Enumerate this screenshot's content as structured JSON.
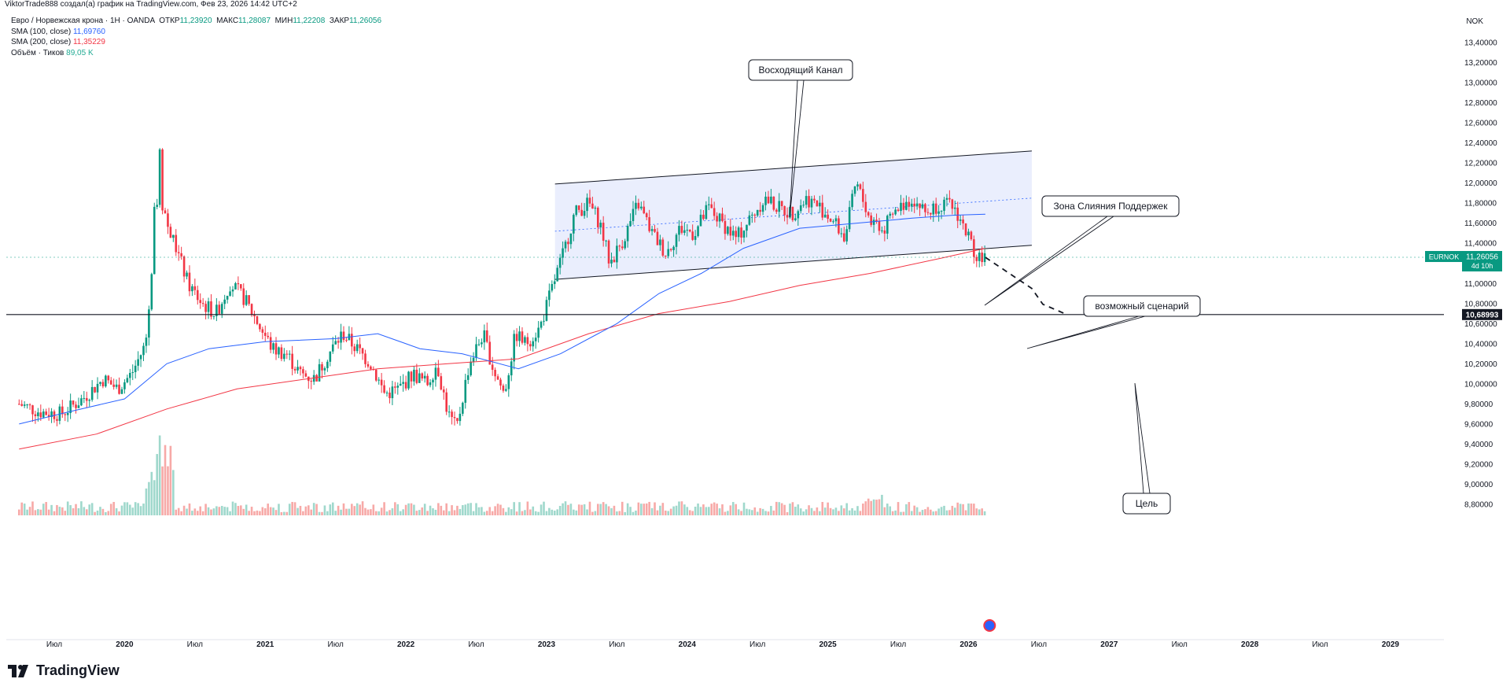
{
  "header": {
    "caption": "ViktorTrade888 создал(а) график на TradingView.com, Фев 23, 2026 14:42 UTC+2"
  },
  "legend": {
    "symbol": "Евро / Норвежская крона · 1Н · OANDA",
    "o_label": "ОТКР",
    "o_val": "11,23920",
    "h_label": "МАКС",
    "h_val": "11,28087",
    "l_label": "МИН",
    "l_val": "11,22208",
    "c_label": "ЗАКР",
    "c_val": "11,26056",
    "sma100_label": "SMA (100, close)",
    "sma100_val": "11,69760",
    "sma200_label": "SMA (200, close)",
    "sma200_val": "11,35229",
    "vol_label": "Объём · Тиков",
    "vol_val": "89,05 K"
  },
  "currency": "NOK",
  "colors": {
    "up": "#089981",
    "down": "#f23645",
    "sma100": "#2962ff",
    "sma200": "#f23645",
    "channel_fill": "#e3e8fc",
    "price_tag": "#089981"
  },
  "footer": {
    "brand": "TradingView"
  },
  "price_tag": {
    "symbol": "EURNOK",
    "price": "11,26056",
    "countdown": "4d 10h"
  },
  "hline_tag": "10,68993",
  "annotations": {
    "channel": "Восходящий Канал",
    "confluence": "Зона Слияния Поддержек",
    "scenario": "возможный сценарий",
    "target": "Цель"
  },
  "chart_data": {
    "type": "candlestick",
    "symbol": "EURNOK",
    "y_axis_ticks": [
      "13,40000",
      "13,20000",
      "13,00000",
      "12,80000",
      "12,60000",
      "12,40000",
      "12,20000",
      "12,00000",
      "11,80000",
      "11,60000",
      "11,40000",
      "11,20000",
      "11,00000",
      "10,80000",
      "10,60000",
      "10,40000",
      "10,20000",
      "10,00000",
      "9,80000",
      "9,60000",
      "9,40000",
      "9,20000",
      "9,00000",
      "8,80000"
    ],
    "ylim": [
      8.7,
      13.5
    ],
    "x_axis_ticks": [
      {
        "label": "Июл",
        "date": 2019.5,
        "bold": false
      },
      {
        "label": "2020",
        "date": 2020.0,
        "bold": true
      },
      {
        "label": "Июл",
        "date": 2020.5,
        "bold": false
      },
      {
        "label": "2021",
        "date": 2021.0,
        "bold": true
      },
      {
        "label": "Июл",
        "date": 2021.5,
        "bold": false
      },
      {
        "label": "2022",
        "date": 2022.0,
        "bold": true
      },
      {
        "label": "Июл",
        "date": 2022.5,
        "bold": false
      },
      {
        "label": "2023",
        "date": 2023.0,
        "bold": true
      },
      {
        "label": "Июл",
        "date": 2023.5,
        "bold": false
      },
      {
        "label": "2024",
        "date": 2024.0,
        "bold": true
      },
      {
        "label": "Июл",
        "date": 2024.5,
        "bold": false
      },
      {
        "label": "2025",
        "date": 2025.0,
        "bold": true
      },
      {
        "label": "Июл",
        "date": 2025.5,
        "bold": false
      },
      {
        "label": "2026",
        "date": 2026.0,
        "bold": true
      },
      {
        "label": "Июл",
        "date": 2026.5,
        "bold": false
      },
      {
        "label": "2027",
        "date": 2027.0,
        "bold": true
      },
      {
        "label": "Июл",
        "date": 2027.5,
        "bold": false
      },
      {
        "label": "2028",
        "date": 2028.0,
        "bold": true
      },
      {
        "label": "Июл",
        "date": 2028.5,
        "bold": false
      },
      {
        "label": "2029",
        "date": 2029.0,
        "bold": true
      }
    ],
    "close_path": [
      [
        2019.25,
        9.8
      ],
      [
        2019.4,
        9.72
      ],
      [
        2019.55,
        9.7
      ],
      [
        2019.7,
        9.85
      ],
      [
        2019.85,
        10.05
      ],
      [
        2019.95,
        9.95
      ],
      [
        2020.05,
        10.1
      ],
      [
        2020.15,
        10.4
      ],
      [
        2020.22,
        11.5
      ],
      [
        2020.24,
        12.1
      ],
      [
        2020.3,
        11.6
      ],
      [
        2020.38,
        11.3
      ],
      [
        2020.45,
        11.0
      ],
      [
        2020.55,
        10.8
      ],
      [
        2020.65,
        10.7
      ],
      [
        2020.75,
        11.0
      ],
      [
        2020.85,
        10.85
      ],
      [
        2020.95,
        10.6
      ],
      [
        2021.05,
        10.35
      ],
      [
        2021.15,
        10.3
      ],
      [
        2021.25,
        10.1
      ],
      [
        2021.35,
        10.05
      ],
      [
        2021.45,
        10.3
      ],
      [
        2021.55,
        10.5
      ],
      [
        2021.65,
        10.35
      ],
      [
        2021.75,
        10.2
      ],
      [
        2021.85,
        9.9
      ],
      [
        2021.95,
        9.95
      ],
      [
        2022.05,
        10.1
      ],
      [
        2022.15,
        10.0
      ],
      [
        2022.22,
        10.2
      ],
      [
        2022.3,
        9.7
      ],
      [
        2022.36,
        9.55
      ],
      [
        2022.45,
        10.2
      ],
      [
        2022.55,
        10.5
      ],
      [
        2022.62,
        10.15
      ],
      [
        2022.7,
        9.9
      ],
      [
        2022.78,
        10.5
      ],
      [
        2022.85,
        10.4
      ],
      [
        2022.95,
        10.55
      ],
      [
        2023.05,
        11.0
      ],
      [
        2023.12,
        11.3
      ],
      [
        2023.2,
        11.7
      ],
      [
        2023.3,
        11.8
      ],
      [
        2023.38,
        11.6
      ],
      [
        2023.45,
        11.2
      ],
      [
        2023.55,
        11.45
      ],
      [
        2023.65,
        11.8
      ],
      [
        2023.75,
        11.5
      ],
      [
        2023.85,
        11.3
      ],
      [
        2023.95,
        11.55
      ],
      [
        2024.05,
        11.5
      ],
      [
        2024.15,
        11.75
      ],
      [
        2024.25,
        11.6
      ],
      [
        2024.35,
        11.45
      ],
      [
        2024.45,
        11.65
      ],
      [
        2024.55,
        11.85
      ],
      [
        2024.65,
        11.75
      ],
      [
        2024.75,
        11.7
      ],
      [
        2024.85,
        11.85
      ],
      [
        2024.95,
        11.75
      ],
      [
        2025.05,
        11.6
      ],
      [
        2025.12,
        11.45
      ],
      [
        2025.2,
        12.0
      ],
      [
        2025.3,
        11.65
      ],
      [
        2025.4,
        11.55
      ],
      [
        2025.5,
        11.75
      ],
      [
        2025.6,
        11.85
      ],
      [
        2025.7,
        11.7
      ],
      [
        2025.8,
        11.8
      ],
      [
        2025.9,
        11.75
      ],
      [
        2025.97,
        11.55
      ],
      [
        2026.05,
        11.3
      ],
      [
        2026.12,
        11.26
      ]
    ],
    "sma100_path": [
      [
        2019.25,
        9.6
      ],
      [
        2019.6,
        9.72
      ],
      [
        2020.0,
        9.85
      ],
      [
        2020.3,
        10.2
      ],
      [
        2020.6,
        10.35
      ],
      [
        2021.0,
        10.42
      ],
      [
        2021.5,
        10.45
      ],
      [
        2021.8,
        10.5
      ],
      [
        2022.1,
        10.35
      ],
      [
        2022.4,
        10.3
      ],
      [
        2022.8,
        10.15
      ],
      [
        2023.1,
        10.3
      ],
      [
        2023.5,
        10.6
      ],
      [
        2023.8,
        10.9
      ],
      [
        2024.1,
        11.1
      ],
      [
        2024.4,
        11.35
      ],
      [
        2024.8,
        11.55
      ],
      [
        2025.2,
        11.6
      ],
      [
        2025.6,
        11.65
      ],
      [
        2025.9,
        11.68
      ],
      [
        2026.12,
        11.69
      ]
    ],
    "sma200_path": [
      [
        2019.25,
        9.35
      ],
      [
        2019.8,
        9.5
      ],
      [
        2020.3,
        9.75
      ],
      [
        2020.8,
        9.95
      ],
      [
        2021.3,
        10.05
      ],
      [
        2021.8,
        10.15
      ],
      [
        2022.3,
        10.2
      ],
      [
        2022.8,
        10.25
      ],
      [
        2023.3,
        10.5
      ],
      [
        2023.8,
        10.7
      ],
      [
        2024.3,
        10.82
      ],
      [
        2024.8,
        10.98
      ],
      [
        2025.3,
        11.1
      ],
      [
        2025.8,
        11.25
      ],
      [
        2026.12,
        11.35
      ]
    ],
    "channel": {
      "start_date": 2023.06,
      "end_date": 2026.45,
      "top_start": 11.99,
      "top_end": 12.32,
      "bottom_start": 11.04,
      "bottom_end": 11.38,
      "mid_start": 11.52,
      "mid_end": 11.85
    },
    "scenario_path": [
      [
        2026.12,
        11.26
      ],
      [
        2026.45,
        10.95
      ],
      [
        2026.55,
        10.86
      ],
      [
        2026.7,
        10.69
      ]
    ],
    "horizontal_level": 10.68993,
    "last_price": 11.26056
  }
}
